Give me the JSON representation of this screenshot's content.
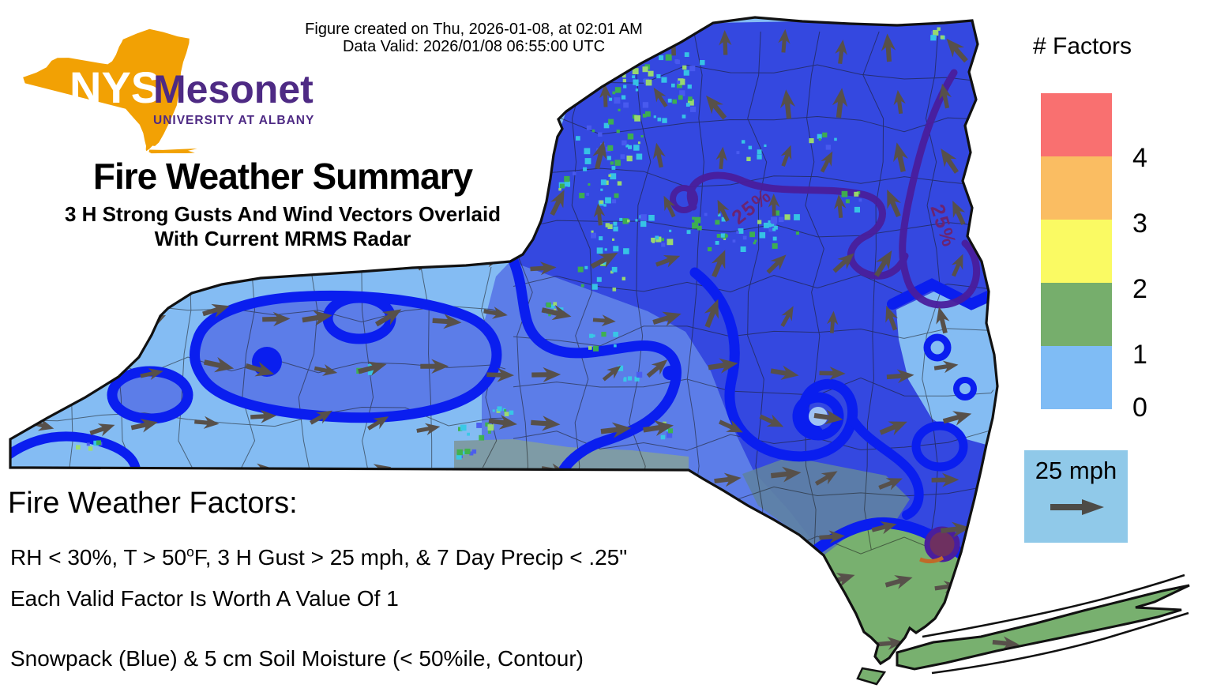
{
  "header": {
    "figure_created": "Figure created on Thu, 2026-01-08, at 02:01 AM",
    "data_valid": "Data Valid: 2026/01/08 06:55:00 UTC"
  },
  "logo": {
    "acronym": "NYS",
    "name": "Mesonet",
    "tagline": "UNIVERSITY AT ALBANY",
    "state_color": "#F2A104",
    "text_color": "#4E2A84"
  },
  "title": {
    "main": "Fire Weather Summary",
    "subtitle_line1": "3 H Strong Gusts And Wind Vectors Overlaid",
    "subtitle_line2": "With Current MRMS Radar"
  },
  "legend": {
    "title": "# Factors",
    "entries": [
      {
        "label": "4",
        "color": "#F97070"
      },
      {
        "label": "3",
        "color": "#FABD62"
      },
      {
        "label": "2",
        "color": "#FAFA63"
      },
      {
        "label": "1",
        "color": "#76AE6C"
      },
      {
        "label": "0",
        "color": "#7FBCF5"
      }
    ]
  },
  "wind_legend": {
    "speed_label": "25 mph",
    "box_color": "#90C9E9",
    "arrow_color": "#4D4B47"
  },
  "map": {
    "soil_moisture_contour_label": "25%",
    "colors": {
      "factor0_base": "#84BCF3",
      "factor1_green": "#78B06F",
      "snow_light": "#5C7DE8",
      "snow_deep": "#3448E0",
      "snow_contour": "#0A1EEF",
      "soil_contour": "#4A1E9C",
      "soil_label": "#6B2472",
      "slate_overlay": "#7E9BA6",
      "steel_overlay": "#5E81A4",
      "wind_arrow": "#57504A",
      "outline": "#111111",
      "radar_cyan": "#37CAE6",
      "radar_green": "#3EB44A"
    }
  },
  "footer": {
    "heading": "Fire Weather Factors:",
    "criteria_pre": "RH < 30%, T > 50",
    "criteria_sup": "o",
    "criteria_post": "F, 3 H Gust > 25 mph, & 7 Day Precip < .25\"",
    "value_note": "Each Valid Factor Is Worth A Value Of 1",
    "overlay_note": "Snowpack (Blue) & 5 cm Soil Moisture (< 50%ile, Contour)"
  }
}
